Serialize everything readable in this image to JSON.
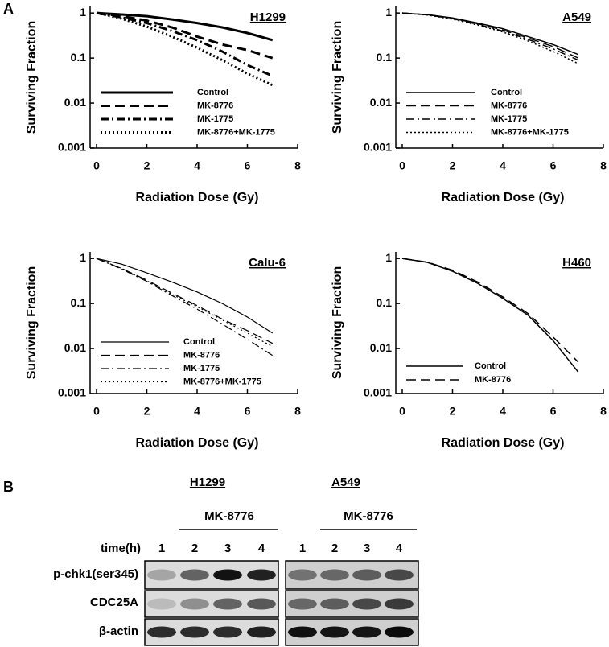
{
  "panel_labels": [
    "A",
    "B"
  ],
  "chart_data": [
    {
      "type": "line",
      "title": "H1299",
      "xlabel": "Radiation Dose (Gy)",
      "ylabel": "Surviving Fraction",
      "yscale": "log",
      "xlim": [
        0,
        8
      ],
      "ylim": [
        0.001,
        1.4
      ],
      "xticks": [
        0,
        2,
        4,
        6,
        8
      ],
      "yticks": [
        0.001,
        0.01,
        0.1,
        1
      ],
      "legend": "lower left",
      "line_width": 3,
      "x": [
        0,
        1,
        2,
        3,
        4,
        5,
        6,
        7
      ],
      "series": [
        {
          "name": "Control",
          "color": "#000000",
          "dash": "solid",
          "values": [
            1,
            0.93,
            0.85,
            0.72,
            0.6,
            0.48,
            0.36,
            0.25
          ]
        },
        {
          "name": "MK-8776",
          "color": "#000000",
          "dash": "dashed",
          "values": [
            1,
            0.85,
            0.68,
            0.48,
            0.3,
            0.2,
            0.15,
            0.1
          ]
        },
        {
          "name": "MK-1775",
          "color": "#000000",
          "dash": "dashdot",
          "values": [
            1,
            0.8,
            0.6,
            0.4,
            0.25,
            0.14,
            0.07,
            0.04
          ]
        },
        {
          "name": "MK-8776+MK-1775",
          "color": "#000000",
          "dash": "dotted",
          "values": [
            1,
            0.75,
            0.5,
            0.3,
            0.17,
            0.09,
            0.045,
            0.025
          ]
        }
      ]
    },
    {
      "type": "line",
      "title": "A549",
      "xlabel": "Radiation Dose (Gy)",
      "ylabel": "Surviving Fraction",
      "yscale": "log",
      "xlim": [
        0,
        8
      ],
      "ylim": [
        0.001,
        1.4
      ],
      "xticks": [
        0,
        2,
        4,
        6,
        8
      ],
      "yticks": [
        0.001,
        0.01,
        0.1,
        1
      ],
      "legend": "lower left",
      "line_width": 1.5,
      "x": [
        0,
        1,
        2,
        3,
        4,
        5,
        6,
        7
      ],
      "series": [
        {
          "name": "Control",
          "color": "#000000",
          "dash": "solid",
          "values": [
            1,
            0.92,
            0.78,
            0.6,
            0.45,
            0.3,
            0.2,
            0.12
          ]
        },
        {
          "name": "MK-8776",
          "color": "#000000",
          "dash": "dashed",
          "values": [
            1,
            0.92,
            0.77,
            0.58,
            0.42,
            0.28,
            0.18,
            0.1
          ]
        },
        {
          "name": "MK-1775",
          "color": "#000000",
          "dash": "dashdot",
          "values": [
            1,
            0.91,
            0.75,
            0.56,
            0.4,
            0.26,
            0.16,
            0.09
          ]
        },
        {
          "name": "MK-8776+MK-1775",
          "color": "#000000",
          "dash": "dotted",
          "values": [
            1,
            0.9,
            0.73,
            0.54,
            0.38,
            0.24,
            0.14,
            0.075
          ]
        }
      ]
    },
    {
      "type": "line",
      "title": "Calu-6",
      "xlabel": "Radiation Dose (Gy)",
      "ylabel": "Surviving Fraction",
      "yscale": "log",
      "xlim": [
        0,
        8
      ],
      "ylim": [
        0.001,
        1.4
      ],
      "xticks": [
        0,
        2,
        4,
        6,
        8
      ],
      "yticks": [
        0.001,
        0.01,
        0.1,
        1
      ],
      "legend": "lower left",
      "line_width": 1.2,
      "x": [
        0,
        1,
        2,
        3,
        4,
        5,
        6,
        7
      ],
      "series": [
        {
          "name": "Control",
          "color": "#000000",
          "dash": "solid",
          "values": [
            1,
            0.75,
            0.48,
            0.3,
            0.18,
            0.1,
            0.05,
            0.022
          ]
        },
        {
          "name": "MK-8776",
          "color": "#000000",
          "dash": "dashed",
          "values": [
            1,
            0.6,
            0.33,
            0.17,
            0.09,
            0.045,
            0.025,
            0.013
          ]
        },
        {
          "name": "MK-1775",
          "color": "#000000",
          "dash": "dashdot",
          "values": [
            1,
            0.58,
            0.31,
            0.15,
            0.075,
            0.035,
            0.016,
            0.007
          ]
        },
        {
          "name": "MK-8776+MK-1775",
          "color": "#000000",
          "dash": "dotted",
          "values": [
            1,
            0.6,
            0.32,
            0.16,
            0.085,
            0.043,
            0.022,
            0.011
          ]
        }
      ]
    },
    {
      "type": "line",
      "title": "H460",
      "xlabel": "Radiation Dose (Gy)",
      "ylabel": "Surviving Fraction",
      "yscale": "log",
      "xlim": [
        0,
        8
      ],
      "ylim": [
        0.001,
        1.4
      ],
      "xticks": [
        0,
        2,
        4,
        6,
        8
      ],
      "yticks": [
        0.001,
        0.01,
        0.1,
        1
      ],
      "legend": "lower left",
      "line_width": 1.5,
      "x": [
        0,
        1,
        2,
        3,
        4,
        5,
        6,
        7
      ],
      "series": [
        {
          "name": "Control",
          "color": "#000000",
          "dash": "solid",
          "values": [
            1,
            0.82,
            0.52,
            0.28,
            0.13,
            0.055,
            0.015,
            0.003
          ]
        },
        {
          "name": "MK-8776",
          "color": "#000000",
          "dash": "dashed",
          "values": [
            1,
            0.83,
            0.55,
            0.3,
            0.14,
            0.06,
            0.018,
            0.005
          ]
        }
      ]
    }
  ],
  "blot": {
    "cell_lines": [
      {
        "name": "H1299",
        "treatment": "MK-8776",
        "lanes": [
          "1",
          "2",
          "3",
          "4"
        ]
      },
      {
        "name": "A549",
        "treatment": "MK-8776",
        "lanes": [
          "1",
          "2",
          "3",
          "4"
        ]
      }
    ],
    "time_label": "time(h)",
    "rows": [
      "p-chk1(ser345)",
      "CDC25A",
      "β-actin"
    ]
  }
}
